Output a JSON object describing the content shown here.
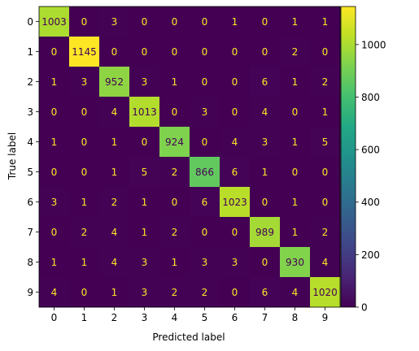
{
  "chart_data": {
    "type": "heatmap",
    "title": "",
    "xlabel": "Predicted label",
    "ylabel": "True label",
    "x_categories": [
      "0",
      "1",
      "2",
      "3",
      "4",
      "5",
      "6",
      "7",
      "8",
      "9"
    ],
    "y_categories": [
      "0",
      "1",
      "2",
      "3",
      "4",
      "5",
      "6",
      "7",
      "8",
      "9"
    ],
    "values": [
      [
        1003,
        0,
        3,
        0,
        0,
        0,
        1,
        0,
        1,
        1
      ],
      [
        0,
        1145,
        0,
        0,
        0,
        0,
        0,
        0,
        2,
        0
      ],
      [
        1,
        3,
        952,
        3,
        1,
        0,
        0,
        6,
        1,
        2
      ],
      [
        0,
        0,
        4,
        1013,
        0,
        3,
        0,
        4,
        0,
        1
      ],
      [
        1,
        0,
        1,
        0,
        924,
        0,
        4,
        3,
        1,
        5
      ],
      [
        0,
        0,
        1,
        5,
        2,
        866,
        6,
        1,
        0,
        0
      ],
      [
        3,
        1,
        2,
        1,
        0,
        6,
        1023,
        0,
        1,
        0
      ],
      [
        0,
        2,
        4,
        1,
        2,
        0,
        0,
        989,
        1,
        2
      ],
      [
        1,
        1,
        4,
        3,
        1,
        3,
        3,
        0,
        930,
        4
      ],
      [
        4,
        0,
        1,
        3,
        2,
        2,
        0,
        6,
        4,
        1020
      ]
    ],
    "colormap": "viridis",
    "colorbar": {
      "range": [
        0,
        1145
      ],
      "ticks": [
        0,
        200,
        400,
        600,
        800,
        1000
      ]
    },
    "label_colors": {
      "on_dark": "#fde725",
      "on_light": "#440154"
    },
    "grid": false
  }
}
